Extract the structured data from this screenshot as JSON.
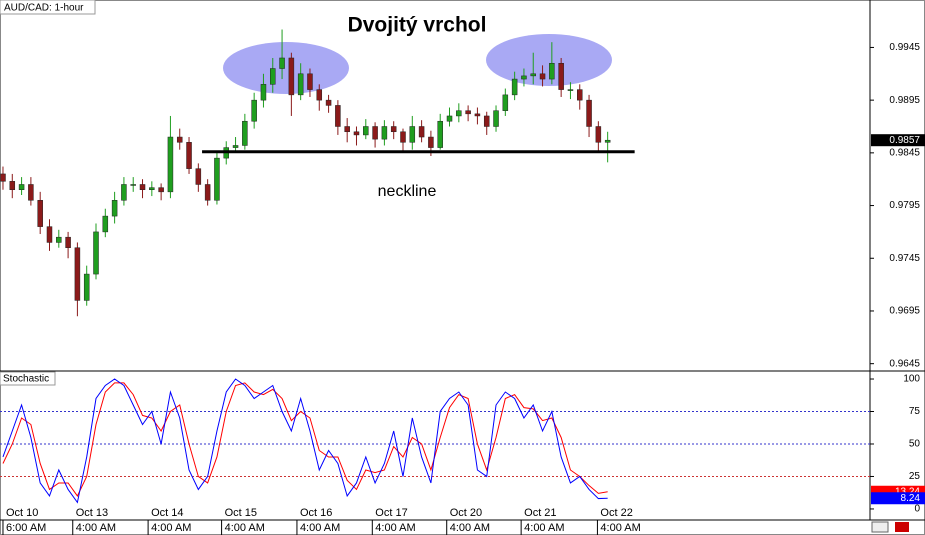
{
  "chart_data": [
    {
      "type": "candlestick",
      "title": "Dvojitý vrchol",
      "label": "AUD/CAD: 1-hour",
      "up_color": "#1f9e1f",
      "down_color": "#8b1a1a",
      "xlim": [
        -0.32,
        93.2
      ],
      "ylim": [
        0.9639,
        0.999
      ],
      "yticks": [
        0.9945,
        0.9895,
        0.9845,
        0.9795,
        0.9745,
        0.9695,
        0.9645
      ],
      "xticks": [
        {
          "value": 0,
          "label": [
            "Oct 10",
            "6:00 AM"
          ]
        },
        {
          "value": 7.5,
          "label": [
            "Oct 13",
            "4:00 AM"
          ]
        },
        {
          "value": 15.6,
          "label": [
            "Oct 14",
            "4:00 AM"
          ]
        },
        {
          "value": 23.5,
          "label": [
            "Oct 15",
            "4:00 AM"
          ]
        },
        {
          "value": 31.6,
          "label": [
            "Oct 16",
            "4:00 AM"
          ]
        },
        {
          "value": 39.7,
          "label": [
            "Oct 17",
            "4:00 AM"
          ]
        },
        {
          "value": 47.7,
          "label": [
            "Oct 20",
            "4:00 AM"
          ]
        },
        {
          "value": 55.7,
          "label": [
            "Oct 21",
            "4:00 AM"
          ]
        },
        {
          "value": 63.9,
          "label": [
            "Oct 22",
            "4:00 AM"
          ]
        }
      ],
      "open": [
        0.9825,
        0.9818,
        0.981,
        0.9815,
        0.98,
        0.9775,
        0.976,
        0.9765,
        0.9755,
        0.9705,
        0.973,
        0.977,
        0.9785,
        0.98,
        0.9815,
        0.9815,
        0.981,
        0.9812,
        0.9808,
        0.986,
        0.9855,
        0.983,
        0.9815,
        0.98,
        0.984,
        0.985,
        0.9852,
        0.9875,
        0.9895,
        0.991,
        0.9925,
        0.9935,
        0.99,
        0.992,
        0.9905,
        0.9895,
        0.989,
        0.987,
        0.9865,
        0.9862,
        0.987,
        0.9858,
        0.987,
        0.9865,
        0.9855,
        0.987,
        0.986,
        0.985,
        0.9875,
        0.988,
        0.9885,
        0.9882,
        0.988,
        0.987,
        0.9885,
        0.99,
        0.9915,
        0.9918,
        0.992,
        0.9915,
        0.993,
        0.9905,
        0.9905,
        0.9895,
        0.987,
        0.9855
      ],
      "high": [
        0.9832,
        0.9825,
        0.9822,
        0.9822,
        0.9808,
        0.9782,
        0.9772,
        0.977,
        0.976,
        0.9738,
        0.9778,
        0.9792,
        0.9808,
        0.9822,
        0.9822,
        0.982,
        0.9818,
        0.9816,
        0.988,
        0.9868,
        0.986,
        0.9835,
        0.982,
        0.9846,
        0.9856,
        0.986,
        0.9882,
        0.9902,
        0.992,
        0.9935,
        0.9962,
        0.994,
        0.993,
        0.9925,
        0.991,
        0.99,
        0.9895,
        0.9878,
        0.987,
        0.9877,
        0.9874,
        0.9876,
        0.9875,
        0.9868,
        0.988,
        0.9876,
        0.9866,
        0.9882,
        0.9888,
        0.9892,
        0.989,
        0.9888,
        0.9884,
        0.989,
        0.9906,
        0.9922,
        0.9925,
        0.994,
        0.9928,
        0.995,
        0.9935,
        0.9912,
        0.991,
        0.99,
        0.9875,
        0.9865
      ],
      "low": [
        0.981,
        0.9802,
        0.9805,
        0.9795,
        0.9768,
        0.9752,
        0.9755,
        0.9745,
        0.969,
        0.97,
        0.9725,
        0.9765,
        0.9778,
        0.9795,
        0.9808,
        0.9802,
        0.9804,
        0.98,
        0.9802,
        0.9848,
        0.9825,
        0.9808,
        0.9795,
        0.9796,
        0.9834,
        0.9845,
        0.9848,
        0.9868,
        0.9888,
        0.9902,
        0.9915,
        0.988,
        0.9895,
        0.9898,
        0.9885,
        0.9883,
        0.9862,
        0.9855,
        0.9852,
        0.9858,
        0.985,
        0.9852,
        0.9858,
        0.9845,
        0.9848,
        0.9855,
        0.9842,
        0.9848,
        0.987,
        0.9874,
        0.9875,
        0.9872,
        0.9862,
        0.9865,
        0.988,
        0.9895,
        0.9908,
        0.991,
        0.9908,
        0.991,
        0.9898,
        0.9896,
        0.9886,
        0.986,
        0.9846,
        0.9836
      ],
      "close": [
        0.9818,
        0.981,
        0.9815,
        0.98,
        0.9775,
        0.976,
        0.9765,
        0.9755,
        0.9705,
        0.973,
        0.977,
        0.9785,
        0.98,
        0.9815,
        0.9815,
        0.981,
        0.9812,
        0.9808,
        0.986,
        0.9855,
        0.983,
        0.9815,
        0.98,
        0.984,
        0.985,
        0.9852,
        0.9875,
        0.9895,
        0.991,
        0.9925,
        0.9935,
        0.99,
        0.992,
        0.9905,
        0.9895,
        0.989,
        0.987,
        0.9865,
        0.9862,
        0.987,
        0.9858,
        0.987,
        0.9865,
        0.9855,
        0.987,
        0.986,
        0.985,
        0.9875,
        0.988,
        0.9885,
        0.9882,
        0.988,
        0.987,
        0.9885,
        0.99,
        0.9915,
        0.9918,
        0.992,
        0.9915,
        0.993,
        0.9905,
        0.9905,
        0.9895,
        0.987,
        0.9855,
        0.9857
      ],
      "neckline": {
        "label": "neckline",
        "y": 0.9846,
        "x": [
          21.4,
          67.9
        ]
      }
    },
    {
      "type": "line",
      "label": "Stochastic",
      "xlim": [
        -0.32,
        93.2
      ],
      "ylim": [
        -8.5,
        105.4
      ],
      "yticks": [
        100,
        75,
        50,
        25,
        0
      ],
      "levels": [
        {
          "value": 75,
          "color": "#3333cc"
        },
        {
          "value": 50,
          "color": "#3333cc"
        },
        {
          "value": 25,
          "color": "#cc3333"
        }
      ],
      "series": [
        {
          "color": "#ff0000",
          "values": [
            35,
            50,
            70,
            65,
            35,
            15,
            20,
            20,
            10,
            25,
            65,
            90,
            97,
            97,
            88,
            72,
            70,
            60,
            75,
            80,
            50,
            25,
            20,
            40,
            75,
            95,
            97,
            90,
            88,
            92,
            85,
            68,
            75,
            70,
            45,
            40,
            40,
            22,
            15,
            30,
            28,
            30,
            48,
            40,
            55,
            50,
            30,
            55,
            78,
            88,
            85,
            50,
            30,
            55,
            85,
            88,
            78,
            77,
            68,
            70,
            55,
            30,
            25,
            18,
            12,
            13.24
          ]
        },
        {
          "color": "#0000ff",
          "values": [
            40,
            60,
            80,
            55,
            20,
            10,
            30,
            15,
            5,
            40,
            85,
            95,
            100,
            95,
            80,
            65,
            75,
            50,
            90,
            70,
            30,
            15,
            25,
            60,
            90,
            100,
            95,
            85,
            90,
            95,
            75,
            60,
            85,
            60,
            30,
            45,
            35,
            10,
            20,
            40,
            20,
            35,
            60,
            25,
            70,
            40,
            20,
            75,
            85,
            90,
            80,
            30,
            25,
            80,
            90,
            85,
            70,
            80,
            60,
            75,
            40,
            20,
            25,
            15,
            8,
            8.24
          ]
        }
      ]
    }
  ]
}
